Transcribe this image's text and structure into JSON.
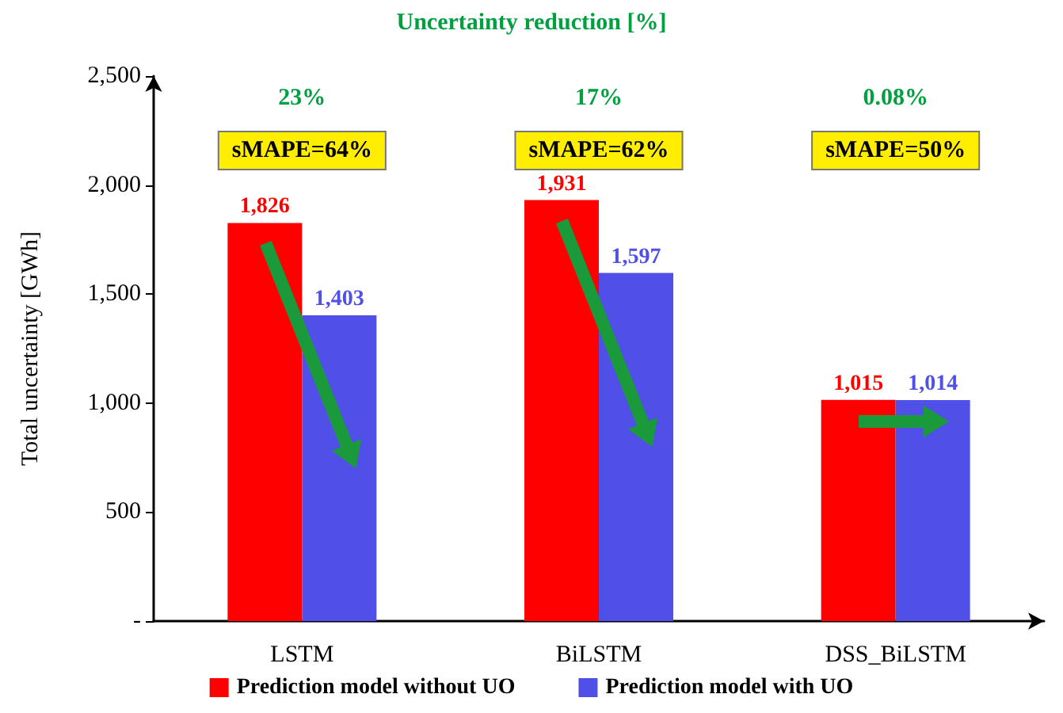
{
  "chart_data": {
    "type": "bar",
    "title": "Uncertainty reduction [%]",
    "ylabel": "Total uncertainty [GWh]",
    "categories": [
      "LSTM",
      "BiLSTM",
      "DSS_BiLSTM"
    ],
    "series": [
      {
        "name": "Prediction model without UO",
        "color": "#ff0000",
        "values": [
          1826,
          1931,
          1015
        ],
        "value_labels": [
          "1,826",
          "1,931",
          "1,015"
        ]
      },
      {
        "name": "Prediction model with UO",
        "color": "#5050e8",
        "values": [
          1403,
          1597,
          1014
        ],
        "value_labels": [
          "1,403",
          "1,597",
          "1,014"
        ]
      }
    ],
    "ylim": [
      0,
      2500
    ],
    "yticks": [
      {
        "value": 0,
        "label": "-"
      },
      500,
      {
        "value": 1000,
        "label": "1,000"
      },
      {
        "value": 1500,
        "label": "1,500"
      },
      {
        "value": 2000,
        "label": "2,000"
      },
      {
        "value": 2500,
        "label": "2,500"
      }
    ],
    "annotations": [
      "23%",
      "sMAPE=64%",
      "17%",
      "sMAPE=62%",
      "0.08%",
      "sMAPE=50%"
    ],
    "grid": false,
    "legend": "bottom"
  }
}
